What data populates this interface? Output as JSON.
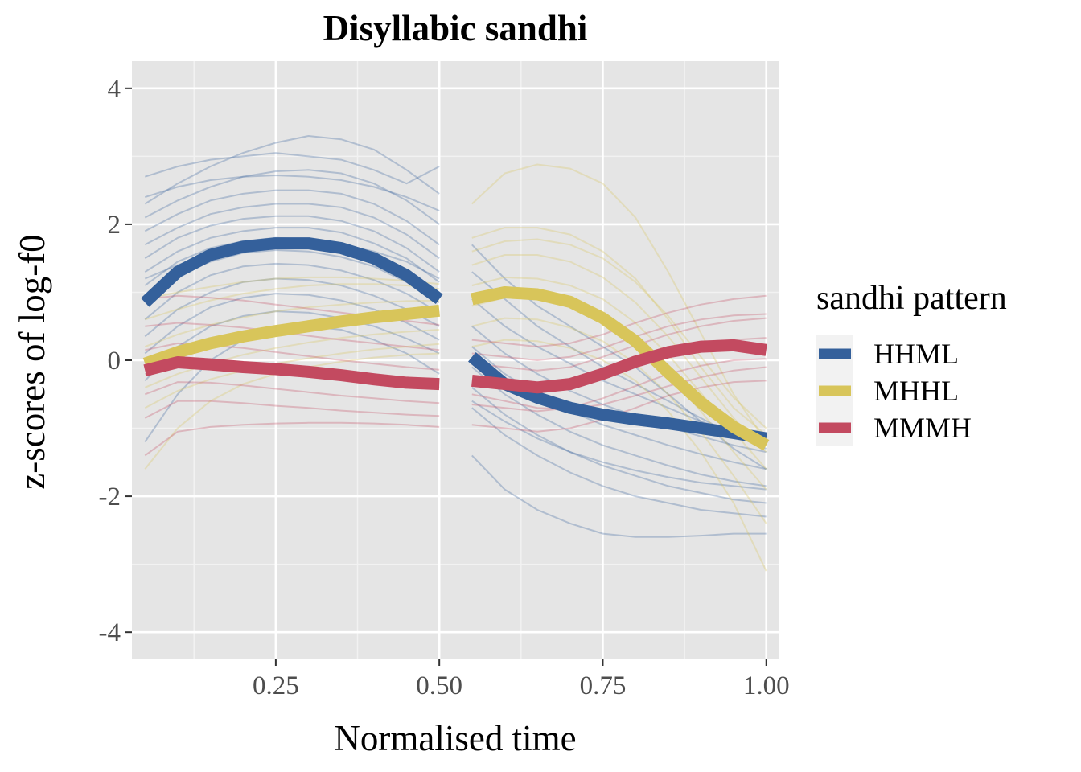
{
  "chart_data": {
    "type": "line",
    "title": "Disyllabic sandhi",
    "xlabel": "Normalised time",
    "ylabel": "z-scores of log-f0",
    "xlim": [
      0.03,
      1.02
    ],
    "ylim": [
      -4.4,
      4.4
    ],
    "x_ticks": [
      0.25,
      0.5,
      0.75,
      1.0
    ],
    "x_tick_labels": [
      "0.25",
      "0.50",
      "0.75",
      "1.00"
    ],
    "y_ticks": [
      -4,
      -2,
      0,
      2,
      4
    ],
    "y_tick_labels": [
      "-4",
      "-2",
      "0",
      "2",
      "4"
    ],
    "grid": true,
    "background": "#e5e5e5",
    "legend": {
      "title": "sandhi pattern",
      "placement": "right",
      "entries": [
        "HHML",
        "MHHL",
        "MMMH"
      ]
    },
    "segments": [
      {
        "x_start": 0.05,
        "x_end": 0.5
      },
      {
        "x_start": 0.55,
        "x_end": 1.0
      }
    ],
    "series": [
      {
        "name": "HHML",
        "color": "#34609b",
        "segments": [
          {
            "x": [
              0.05,
              0.1,
              0.15,
              0.2,
              0.25,
              0.3,
              0.35,
              0.4,
              0.45,
              0.5
            ],
            "y": [
              0.85,
              1.3,
              1.55,
              1.67,
              1.72,
              1.72,
              1.65,
              1.5,
              1.25,
              0.9
            ]
          },
          {
            "x": [
              0.55,
              0.6,
              0.65,
              0.7,
              0.75,
              0.8,
              0.85,
              0.9,
              0.95,
              1.0
            ],
            "y": [
              0.05,
              -0.35,
              -0.55,
              -0.7,
              -0.8,
              -0.87,
              -0.93,
              -1.0,
              -1.07,
              -1.15
            ]
          }
        ]
      },
      {
        "name": "MHHL",
        "color": "#d8c55a",
        "segments": [
          {
            "x": [
              0.05,
              0.1,
              0.15,
              0.2,
              0.25,
              0.3,
              0.35,
              0.4,
              0.45,
              0.5
            ],
            "y": [
              -0.05,
              0.12,
              0.25,
              0.35,
              0.43,
              0.5,
              0.57,
              0.63,
              0.68,
              0.73
            ]
          },
          {
            "x": [
              0.55,
              0.6,
              0.65,
              0.7,
              0.75,
              0.8,
              0.85,
              0.9,
              0.95,
              1.0
            ],
            "y": [
              0.9,
              1.0,
              0.97,
              0.86,
              0.62,
              0.28,
              -0.18,
              -0.62,
              -0.98,
              -1.25
            ]
          }
        ]
      },
      {
        "name": "MMMH",
        "color": "#c34a60",
        "segments": [
          {
            "x": [
              0.05,
              0.1,
              0.15,
              0.2,
              0.25,
              0.3,
              0.35,
              0.4,
              0.45,
              0.5
            ],
            "y": [
              -0.15,
              -0.03,
              -0.06,
              -0.1,
              -0.13,
              -0.17,
              -0.22,
              -0.28,
              -0.33,
              -0.35
            ]
          },
          {
            "x": [
              0.55,
              0.6,
              0.65,
              0.7,
              0.75,
              0.8,
              0.85,
              0.9,
              0.95,
              1.0
            ],
            "y": [
              -0.3,
              -0.35,
              -0.4,
              -0.35,
              -0.2,
              -0.02,
              0.12,
              0.2,
              0.22,
              0.15
            ]
          }
        ]
      }
    ],
    "individual_contours": [
      {
        "pattern": "HHML",
        "segment": 1,
        "y": [
          2.7,
          2.85,
          2.95,
          3.0,
          3.05,
          3.0,
          2.95,
          2.8,
          2.6,
          2.85
        ]
      },
      {
        "pattern": "HHML",
        "segment": 1,
        "y": [
          2.3,
          2.6,
          2.85,
          3.05,
          3.2,
          3.3,
          3.25,
          3.1,
          2.8,
          2.45
        ]
      },
      {
        "pattern": "HHML",
        "segment": 1,
        "y": [
          2.1,
          2.35,
          2.55,
          2.7,
          2.78,
          2.8,
          2.75,
          2.6,
          2.35,
          2.0
        ]
      },
      {
        "pattern": "HHML",
        "segment": 1,
        "y": [
          1.9,
          2.15,
          2.35,
          2.45,
          2.5,
          2.5,
          2.45,
          2.3,
          2.05,
          1.7
        ]
      },
      {
        "pattern": "HHML",
        "segment": 1,
        "y": [
          1.7,
          1.95,
          2.15,
          2.25,
          2.3,
          2.3,
          2.25,
          2.1,
          1.85,
          1.5
        ]
      },
      {
        "pattern": "HHML",
        "segment": 1,
        "y": [
          1.5,
          1.8,
          1.98,
          2.08,
          2.12,
          2.12,
          2.05,
          1.9,
          1.65,
          1.3
        ]
      },
      {
        "pattern": "HHML",
        "segment": 1,
        "y": [
          1.3,
          1.6,
          1.8,
          1.9,
          1.95,
          1.95,
          1.88,
          1.72,
          1.5,
          1.15
        ]
      },
      {
        "pattern": "HHML",
        "segment": 1,
        "y": [
          1.1,
          1.45,
          1.65,
          1.75,
          1.8,
          1.78,
          1.7,
          1.55,
          1.32,
          1.0
        ]
      },
      {
        "pattern": "HHML",
        "segment": 1,
        "y": [
          0.9,
          1.25,
          1.45,
          1.58,
          1.62,
          1.6,
          1.52,
          1.38,
          1.15,
          0.85
        ]
      },
      {
        "pattern": "HHML",
        "segment": 1,
        "y": [
          0.6,
          1.0,
          1.25,
          1.38,
          1.42,
          1.4,
          1.32,
          1.18,
          0.98,
          0.7
        ]
      },
      {
        "pattern": "HHML",
        "segment": 1,
        "y": [
          0.35,
          0.75,
          1.0,
          1.15,
          1.2,
          1.18,
          1.1,
          0.95,
          0.75,
          0.5
        ]
      },
      {
        "pattern": "HHML",
        "segment": 1,
        "y": [
          0.1,
          0.5,
          0.78,
          0.92,
          0.98,
          0.96,
          0.88,
          0.75,
          0.55,
          0.3
        ]
      },
      {
        "pattern": "HHML",
        "segment": 1,
        "y": [
          -0.3,
          0.2,
          0.5,
          0.65,
          0.72,
          0.7,
          0.62,
          0.5,
          0.32,
          0.1
        ]
      },
      {
        "pattern": "HHML",
        "segment": 1,
        "y": [
          -1.2,
          -0.5,
          0.0,
          0.3,
          0.45,
          0.5,
          0.45,
          0.3,
          0.1,
          -0.2
        ]
      },
      {
        "pattern": "HHML",
        "segment": 1,
        "y": [
          2.4,
          2.55,
          2.65,
          2.7,
          2.72,
          2.7,
          2.65,
          2.55,
          2.4,
          2.2
        ]
      },
      {
        "pattern": "HHML",
        "segment": 1,
        "y": [
          1.2,
          1.4,
          1.55,
          1.65,
          1.7,
          1.72,
          1.7,
          1.6,
          1.45,
          1.2
        ]
      },
      {
        "pattern": "HHML",
        "segment": 2,
        "y": [
          1.7,
          1.2,
          0.8,
          0.5,
          0.2,
          -0.1,
          -0.5,
          -0.9,
          -1.3,
          -1.6
        ]
      },
      {
        "pattern": "HHML",
        "segment": 2,
        "y": [
          1.3,
          0.9,
          0.5,
          0.2,
          -0.1,
          -0.35,
          -0.6,
          -0.85,
          -1.1,
          -1.3
        ]
      },
      {
        "pattern": "HHML",
        "segment": 2,
        "y": [
          0.9,
          0.5,
          0.2,
          -0.05,
          -0.3,
          -0.5,
          -0.7,
          -0.9,
          -1.05,
          -1.2
        ]
      },
      {
        "pattern": "HHML",
        "segment": 2,
        "y": [
          0.5,
          0.1,
          -0.2,
          -0.45,
          -0.65,
          -0.82,
          -0.98,
          -1.12,
          -1.25,
          -1.35
        ]
      },
      {
        "pattern": "HHML",
        "segment": 2,
        "y": [
          0.2,
          -0.2,
          -0.5,
          -0.75,
          -0.95,
          -1.1,
          -1.25,
          -1.38,
          -1.5,
          -1.6
        ]
      },
      {
        "pattern": "HHML",
        "segment": 2,
        "y": [
          -0.1,
          -0.5,
          -0.8,
          -1.05,
          -1.25,
          -1.4,
          -1.55,
          -1.68,
          -1.78,
          -1.85
        ]
      },
      {
        "pattern": "HHML",
        "segment": 2,
        "y": [
          -0.4,
          -0.8,
          -1.1,
          -1.35,
          -1.55,
          -1.7,
          -1.85,
          -1.95,
          -2.05,
          -2.1
        ]
      },
      {
        "pattern": "HHML",
        "segment": 2,
        "y": [
          -0.7,
          -1.1,
          -1.4,
          -1.65,
          -1.85,
          -2.0,
          -2.1,
          -2.2,
          -2.25,
          -2.3
        ]
      },
      {
        "pattern": "HHML",
        "segment": 2,
        "y": [
          -1.4,
          -1.9,
          -2.2,
          -2.4,
          -2.55,
          -2.6,
          -2.6,
          -2.58,
          -2.55,
          -2.55
        ]
      },
      {
        "pattern": "HHML",
        "segment": 2,
        "y": [
          0.0,
          -0.3,
          -0.5,
          -0.65,
          -0.78,
          -0.88,
          -0.97,
          -1.05,
          -1.12,
          -1.2
        ]
      },
      {
        "pattern": "HHML",
        "segment": 2,
        "y": [
          -0.6,
          -0.9,
          -1.15,
          -1.35,
          -1.5,
          -1.62,
          -1.72,
          -1.8,
          -1.85,
          -1.9
        ]
      },
      {
        "pattern": "MHHL",
        "segment": 1,
        "y": [
          0.6,
          0.75,
          0.88,
          0.98,
          1.05,
          1.1,
          1.12,
          1.12,
          1.1,
          1.05
        ]
      },
      {
        "pattern": "MHHL",
        "segment": 1,
        "y": [
          0.2,
          0.38,
          0.52,
          0.63,
          0.72,
          0.78,
          0.82,
          0.85,
          0.87,
          0.88
        ]
      },
      {
        "pattern": "MHHL",
        "segment": 1,
        "y": [
          -0.1,
          0.08,
          0.22,
          0.35,
          0.45,
          0.52,
          0.58,
          0.63,
          0.66,
          0.68
        ]
      },
      {
        "pattern": "MHHL",
        "segment": 1,
        "y": [
          -0.4,
          -0.2,
          -0.05,
          0.08,
          0.18,
          0.26,
          0.33,
          0.38,
          0.42,
          0.45
        ]
      },
      {
        "pattern": "MHHL",
        "segment": 1,
        "y": [
          -0.7,
          -0.45,
          -0.28,
          -0.15,
          -0.05,
          0.03,
          0.1,
          0.16,
          0.2,
          0.24
        ]
      },
      {
        "pattern": "MHHL",
        "segment": 1,
        "y": [
          -1.6,
          -1.0,
          -0.6,
          -0.35,
          -0.2,
          -0.1,
          -0.02,
          0.04,
          0.08,
          0.1
        ]
      },
      {
        "pattern": "MHHL",
        "segment": 1,
        "y": [
          0.9,
          1.0,
          1.08,
          1.15,
          1.2,
          1.22,
          1.22,
          1.2,
          1.17,
          1.12
        ]
      },
      {
        "pattern": "MHHL",
        "segment": 2,
        "y": [
          2.3,
          2.75,
          2.88,
          2.82,
          2.6,
          2.1,
          1.3,
          0.4,
          -0.5,
          -1.2
        ]
      },
      {
        "pattern": "MHHL",
        "segment": 2,
        "y": [
          1.8,
          1.95,
          1.95,
          1.85,
          1.6,
          1.2,
          0.6,
          -0.1,
          -0.7,
          -1.1
        ]
      },
      {
        "pattern": "MHHL",
        "segment": 2,
        "y": [
          1.4,
          1.55,
          1.55,
          1.45,
          1.22,
          0.85,
          0.35,
          -0.25,
          -0.85,
          -1.35
        ]
      },
      {
        "pattern": "MHHL",
        "segment": 2,
        "y": [
          1.1,
          1.22,
          1.2,
          1.1,
          0.9,
          0.55,
          0.08,
          -0.48,
          -1.05,
          -1.6
        ]
      },
      {
        "pattern": "MHHL",
        "segment": 2,
        "y": [
          0.8,
          0.92,
          0.9,
          0.78,
          0.58,
          0.25,
          -0.2,
          -0.75,
          -1.35,
          -1.9
        ]
      },
      {
        "pattern": "MHHL",
        "segment": 2,
        "y": [
          0.5,
          0.62,
          0.6,
          0.48,
          0.28,
          -0.05,
          -0.5,
          -1.05,
          -1.7,
          -2.4
        ]
      },
      {
        "pattern": "MHHL",
        "segment": 2,
        "y": [
          0.2,
          0.3,
          0.28,
          0.18,
          0.0,
          -0.3,
          -0.75,
          -1.35,
          -2.1,
          -3.1
        ]
      },
      {
        "pattern": "MHHL",
        "segment": 2,
        "y": [
          1.6,
          1.75,
          1.78,
          1.7,
          1.5,
          1.15,
          0.65,
          0.05,
          -0.55,
          -1.0
        ]
      },
      {
        "pattern": "MMMH",
        "segment": 1,
        "y": [
          0.5,
          0.55,
          0.52,
          0.48,
          0.42,
          0.36,
          0.3,
          0.25,
          0.2,
          0.15
        ]
      },
      {
        "pattern": "MMMH",
        "segment": 1,
        "y": [
          0.15,
          0.25,
          0.22,
          0.18,
          0.12,
          0.06,
          0.0,
          -0.05,
          -0.1,
          -0.14
        ]
      },
      {
        "pattern": "MMMH",
        "segment": 1,
        "y": [
          -0.2,
          -0.05,
          -0.08,
          -0.12,
          -0.17,
          -0.22,
          -0.27,
          -0.32,
          -0.36,
          -0.4
        ]
      },
      {
        "pattern": "MMMH",
        "segment": 1,
        "y": [
          -0.5,
          -0.32,
          -0.33,
          -0.37,
          -0.42,
          -0.47,
          -0.52,
          -0.56,
          -0.6,
          -0.63
        ]
      },
      {
        "pattern": "MMMH",
        "segment": 1,
        "y": [
          -0.85,
          -0.6,
          -0.6,
          -0.63,
          -0.67,
          -0.7,
          -0.74,
          -0.77,
          -0.8,
          -0.82
        ]
      },
      {
        "pattern": "MMMH",
        "segment": 1,
        "y": [
          -1.4,
          -1.05,
          -0.98,
          -0.95,
          -0.93,
          -0.92,
          -0.92,
          -0.93,
          -0.95,
          -0.98
        ]
      },
      {
        "pattern": "MMMH",
        "segment": 1,
        "y": [
          0.9,
          0.95,
          0.92,
          0.88,
          0.82,
          0.76,
          0.7,
          0.64,
          0.58,
          0.52
        ]
      },
      {
        "pattern": "MMMH",
        "segment": 2,
        "y": [
          0.3,
          0.25,
          0.2,
          0.25,
          0.38,
          0.55,
          0.7,
          0.82,
          0.9,
          0.95
        ]
      },
      {
        "pattern": "MMMH",
        "segment": 2,
        "y": [
          -0.05,
          -0.1,
          -0.15,
          -0.1,
          0.05,
          0.22,
          0.38,
          0.5,
          0.58,
          0.62
        ]
      },
      {
        "pattern": "MMMH",
        "segment": 2,
        "y": [
          -0.35,
          -0.4,
          -0.45,
          -0.4,
          -0.25,
          -0.07,
          0.1,
          0.22,
          0.3,
          0.33
        ]
      },
      {
        "pattern": "MMMH",
        "segment": 2,
        "y": [
          -0.65,
          -0.7,
          -0.75,
          -0.7,
          -0.56,
          -0.38,
          -0.2,
          -0.08,
          0.0,
          0.02
        ]
      },
      {
        "pattern": "MMMH",
        "segment": 2,
        "y": [
          -0.95,
          -1.0,
          -1.05,
          -1.0,
          -0.87,
          -0.7,
          -0.52,
          -0.4,
          -0.32,
          -0.3
        ]
      },
      {
        "pattern": "MMMH",
        "segment": 2,
        "y": [
          -0.5,
          -0.6,
          -0.7,
          -0.72,
          -0.65,
          -0.52,
          -0.38,
          -0.25,
          -0.15,
          -0.1
        ]
      },
      {
        "pattern": "MMMH",
        "segment": 2,
        "y": [
          0.1,
          0.05,
          0.0,
          0.05,
          0.18,
          0.35,
          0.5,
          0.6,
          0.66,
          0.68
        ]
      }
    ]
  }
}
